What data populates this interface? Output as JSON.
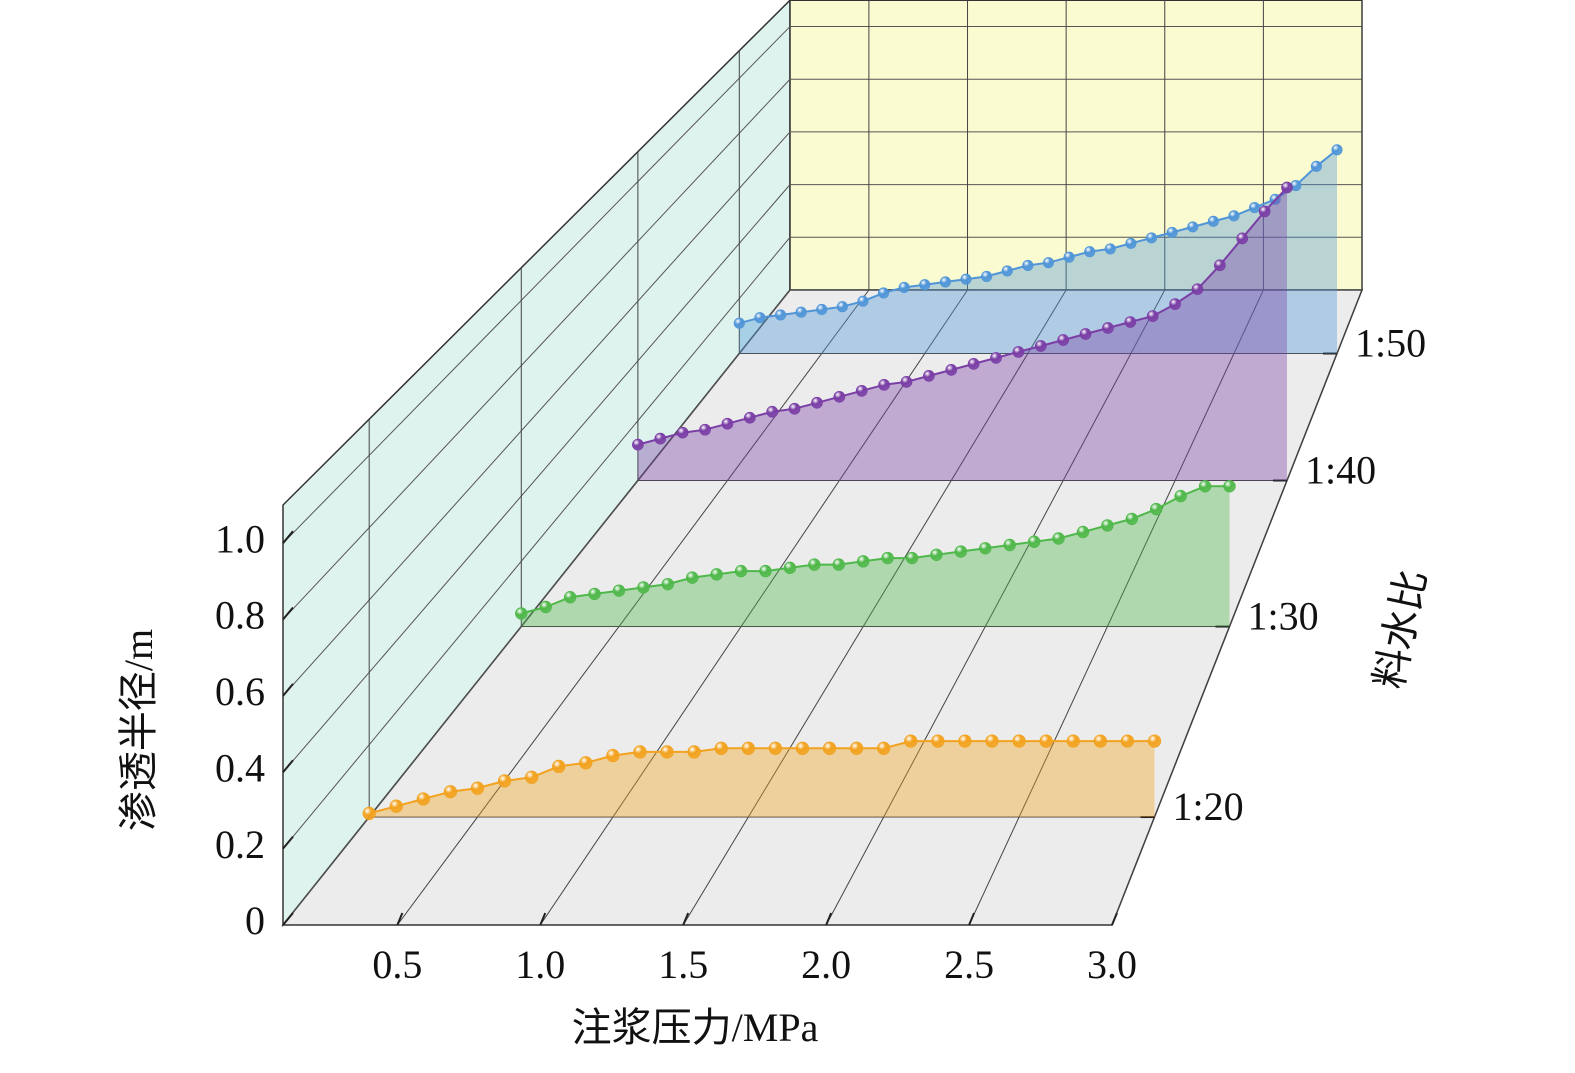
{
  "chart_data": {
    "type": "waterfall3d",
    "x_label": "注浆压力/MPa",
    "y_label": "渗透半径/m",
    "z_label": "料水比",
    "x": [
      0.1,
      0.2,
      0.3,
      0.4,
      0.5,
      0.6,
      0.7,
      0.8,
      0.9,
      1.0,
      1.1,
      1.2,
      1.3,
      1.4,
      1.5,
      1.6,
      1.7,
      1.8,
      1.9,
      2.0,
      2.1,
      2.2,
      2.3,
      2.4,
      2.5,
      2.6,
      2.7,
      2.8,
      2.9,
      3.0
    ],
    "xlim": [
      0.1,
      3.0
    ],
    "xticks": [
      0.5,
      {
        "value": 1,
        "label": "1.0"
      },
      1.5,
      {
        "value": 2,
        "label": "2.0"
      },
      2.5,
      {
        "value": 3,
        "label": "3.0"
      }
    ],
    "ylim": [
      0,
      1.1
    ],
    "yticks": [
      0,
      0.2,
      0.4,
      0.6,
      0.8,
      {
        "value": 1,
        "label": "1.0"
      }
    ],
    "grid": true,
    "series": [
      {
        "name": "1:20",
        "color": "#f2a21e",
        "values": [
          0.01,
          0.03,
          0.05,
          0.07,
          0.08,
          0.1,
          0.11,
          0.14,
          0.15,
          0.17,
          0.18,
          0.18,
          0.18,
          0.19,
          0.19,
          0.19,
          0.19,
          0.19,
          0.19,
          0.19,
          0.21,
          0.21,
          0.21,
          0.21,
          0.21,
          0.21,
          0.21,
          0.21,
          0.21,
          0.21
        ]
      },
      {
        "name": "1:30",
        "color": "#4fb84a",
        "values": [
          0.04,
          0.06,
          0.09,
          0.1,
          0.11,
          0.12,
          0.13,
          0.15,
          0.16,
          0.17,
          0.17,
          0.18,
          0.19,
          0.19,
          0.2,
          0.21,
          0.21,
          0.22,
          0.23,
          0.24,
          0.25,
          0.26,
          0.27,
          0.29,
          0.31,
          0.33,
          0.36,
          0.4,
          0.43,
          0.43
        ]
      },
      {
        "name": "1:40",
        "color": "#7a3ea6",
        "values": [
          0.12,
          0.14,
          0.16,
          0.17,
          0.19,
          0.21,
          0.23,
          0.24,
          0.26,
          0.28,
          0.3,
          0.32,
          0.33,
          0.35,
          0.37,
          0.39,
          0.41,
          0.43,
          0.45,
          0.47,
          0.49,
          0.51,
          0.53,
          0.55,
          0.59,
          0.64,
          0.72,
          0.81,
          0.9,
          0.98
        ]
      },
      {
        "name": "1:50",
        "color": "#4f95d8",
        "values": [
          0.11,
          0.13,
          0.14,
          0.15,
          0.16,
          0.17,
          0.19,
          0.22,
          0.24,
          0.25,
          0.26,
          0.27,
          0.28,
          0.3,
          0.32,
          0.33,
          0.35,
          0.37,
          0.38,
          0.4,
          0.42,
          0.44,
          0.46,
          0.48,
          0.5,
          0.53,
          0.56,
          0.61,
          0.68,
          0.74
        ]
      }
    ]
  }
}
